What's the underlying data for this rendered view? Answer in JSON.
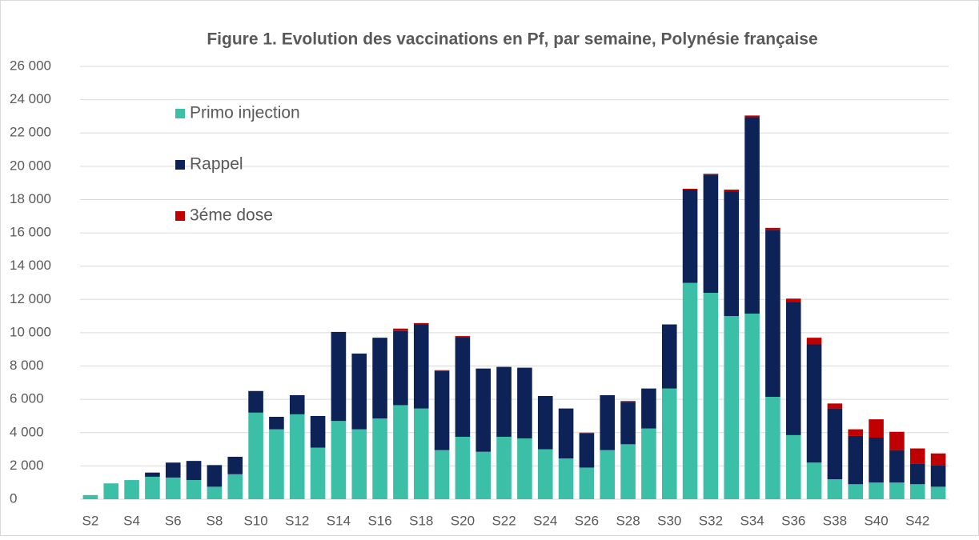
{
  "chart_data": {
    "type": "stacked_bar",
    "title": "Figure 1. Evolution des vaccinations en Pf, par semaine, Polynésie française",
    "categories": [
      "S2",
      null,
      "S4",
      null,
      "S6",
      null,
      "S8",
      null,
      "S10",
      null,
      "S12",
      null,
      "S14",
      null,
      "S16",
      null,
      "S18",
      null,
      "S20",
      null,
      "S22",
      null,
      "S24",
      null,
      "S26",
      null,
      "S28",
      null,
      "S30",
      null,
      "S32",
      null,
      "S34",
      null,
      "S36",
      null,
      "S38",
      null,
      "S40",
      null,
      "S42",
      null
    ],
    "series": [
      {
        "name": "Primo injection",
        "color": "#3bbfa7",
        "values": [
          250,
          950,
          1150,
          1350,
          1300,
          1150,
          750,
          1500,
          5200,
          4200,
          5100,
          3100,
          4700,
          4200,
          4850,
          5650,
          5450,
          2950,
          3750,
          2850,
          3750,
          3650,
          3000,
          2450,
          1900,
          2950,
          3300,
          4250,
          6650,
          13000,
          12400,
          11000,
          11150,
          6150,
          3850,
          2200,
          1200,
          900,
          1000,
          1000,
          900,
          750
        ]
      },
      {
        "name": "Rappel",
        "color": "#0d2257",
        "values": [
          0,
          0,
          0,
          250,
          900,
          1150,
          1300,
          1050,
          1300,
          750,
          1150,
          1900,
          5350,
          4550,
          4850,
          4450,
          5050,
          4750,
          6000,
          5000,
          4200,
          4250,
          3200,
          3000,
          2050,
          3300,
          2550,
          2400,
          3850,
          5600,
          7100,
          7500,
          11800,
          10000,
          8000,
          7100,
          4250,
          2900,
          2700,
          1950,
          1250,
          1300
        ]
      },
      {
        "name": "3éme dose",
        "color": "#c00000",
        "values": [
          0,
          0,
          0,
          0,
          0,
          0,
          0,
          0,
          0,
          0,
          0,
          0,
          0,
          0,
          0,
          150,
          80,
          50,
          50,
          0,
          0,
          0,
          0,
          0,
          50,
          0,
          50,
          0,
          0,
          50,
          50,
          100,
          100,
          150,
          200,
          400,
          300,
          400,
          1100,
          1100,
          900,
          700
        ]
      }
    ],
    "ylim": [
      0,
      26000
    ],
    "yticks": [
      0,
      {
        "value": 2000,
        "label": "2 000"
      },
      {
        "value": 4000,
        "label": "4 000"
      },
      {
        "value": 6000,
        "label": "6 000"
      },
      {
        "value": 8000,
        "label": "8 000"
      },
      {
        "value": 10000,
        "label": "10 000"
      },
      {
        "value": 12000,
        "label": "12 000"
      },
      {
        "value": 14000,
        "label": "14 000"
      },
      {
        "value": 16000,
        "label": "16 000"
      },
      {
        "value": 18000,
        "label": "18 000"
      },
      {
        "value": 20000,
        "label": "20 000"
      },
      {
        "value": 22000,
        "label": "22 000"
      },
      {
        "value": 24000,
        "label": "24 000"
      },
      {
        "value": 26000,
        "label": "26 000"
      }
    ],
    "grid": true,
    "legend": "upper left"
  }
}
